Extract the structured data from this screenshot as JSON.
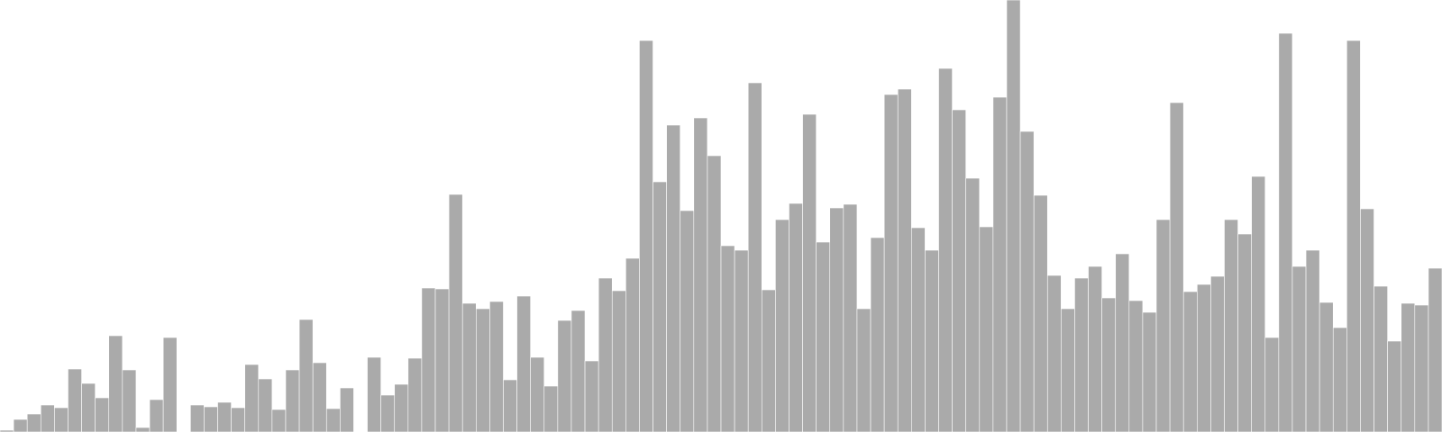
{
  "chart_data": {
    "type": "bar",
    "title": "",
    "xlabel": "",
    "ylabel": "",
    "grid": false,
    "bar_color": "#aaaaaa",
    "ylim": [
      0,
      480
    ],
    "values": [
      2,
      14,
      20,
      30,
      27,
      70,
      54,
      38,
      107,
      69,
      5,
      36,
      105,
      0,
      30,
      28,
      33,
      27,
      75,
      59,
      25,
      69,
      125,
      77,
      26,
      49,
      0,
      83,
      41,
      53,
      82,
      160,
      159,
      264,
      143,
      137,
      145,
      58,
      151,
      83,
      51,
      124,
      135,
      79,
      171,
      157,
      193,
      435,
      278,
      341,
      246,
      349,
      307,
      207,
      202,
      388,
      158,
      236,
      254,
      353,
      211,
      249,
      253,
      137,
      216,
      375,
      381,
      227,
      202,
      404,
      358,
      282,
      228,
      372,
      480,
      334,
      263,
      174,
      137,
      171,
      184,
      149,
      198,
      146,
      133,
      236,
      366,
      156,
      164,
      173,
      236,
      220,
      284,
      105,
      443,
      184,
      202,
      144,
      116,
      435,
      248,
      162,
      101,
      143,
      141,
      182
    ]
  }
}
